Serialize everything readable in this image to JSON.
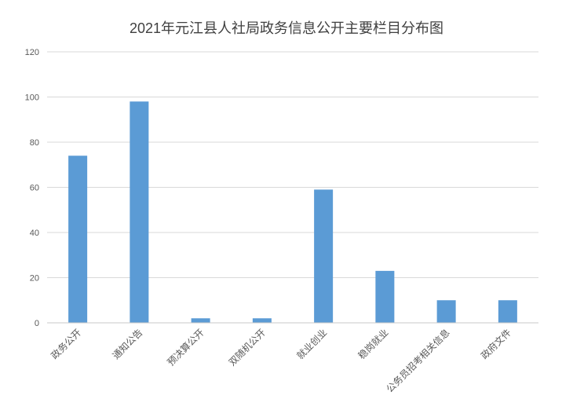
{
  "chart_data": {
    "type": "bar",
    "title": "2021年元江县人社局政务信息公开主要栏目分布图",
    "xlabel": "",
    "ylabel": "",
    "categories": [
      "政务公开",
      "通知公告",
      "预决算公开",
      "双随机公开",
      "就业创业",
      "稳岗就业",
      "公务员招考相关信息",
      "政府文件"
    ],
    "values": [
      74,
      98,
      2,
      2,
      59,
      23,
      10,
      10
    ],
    "ylim": [
      0,
      120
    ],
    "yticks": [
      0,
      20,
      40,
      60,
      80,
      100,
      120
    ],
    "grid": true,
    "legend": "none",
    "colors": {
      "bar": "#5B9BD5",
      "grid": "#D9D9D9",
      "axis": "#C8C8C8",
      "tick_text": "#595959",
      "title_text": "#404040"
    }
  }
}
